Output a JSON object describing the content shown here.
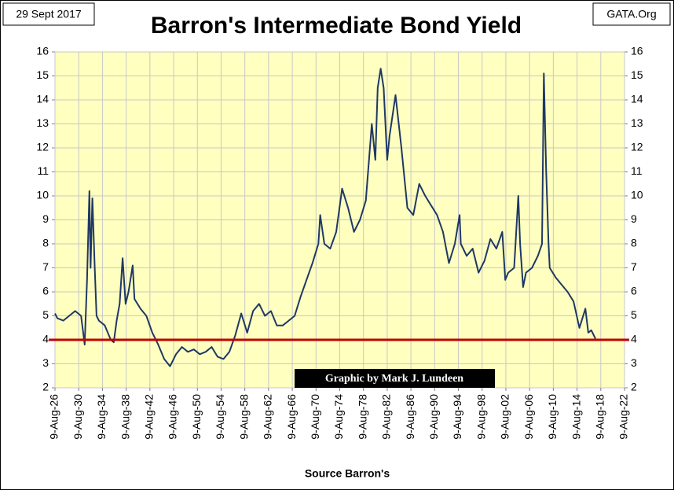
{
  "chart_data": {
    "type": "line",
    "title": "Barron's Intermediate Bond Yield",
    "date_note": "29 Sept 2017",
    "source_note": "GATA.Org",
    "credit": "Graphic by Mark J. Lundeen",
    "xlabel": "Source Barron's",
    "x": [
      1926.6,
      1927,
      1928,
      1929,
      1930,
      1931,
      1931.6,
      1932,
      1932.4,
      1932.6,
      1932.9,
      1933.3,
      1933.6,
      1934,
      1935,
      1936,
      1936.5,
      1937,
      1937.5,
      1938,
      1938.5,
      1939,
      1939.7,
      1940,
      1941,
      1942,
      1943,
      1944,
      1945,
      1946,
      1947,
      1948,
      1949,
      1950,
      1951,
      1952,
      1953,
      1954,
      1955,
      1956,
      1957,
      1958,
      1959,
      1960,
      1961,
      1962,
      1963,
      1964,
      1965,
      1966,
      1967,
      1968,
      1969,
      1970,
      1971,
      1971.3,
      1972,
      1973,
      1974,
      1975,
      1976,
      1977,
      1978,
      1979,
      1980,
      1980.6,
      1981,
      1981.5,
      1982,
      1982.6,
      1983,
      1984,
      1985,
      1986,
      1987,
      1988,
      1989,
      1990,
      1991,
      1992,
      1993,
      1994,
      1994.8,
      1995,
      1996,
      1997,
      1998,
      1999,
      2000,
      2001,
      2002,
      2002.5,
      2003,
      2004,
      2004.7,
      2005,
      2005.5,
      2006,
      2007,
      2008,
      2008.7,
      2009,
      2009.4,
      2009.8,
      2010,
      2011,
      2012,
      2013,
      2014,
      2015,
      2016,
      2016.5,
      2017,
      2017.7
    ],
    "series": [
      {
        "name": "Barron's Intermediate Bond Yield",
        "color": "#1f3864",
        "values": [
          5.1,
          4.9,
          4.8,
          5.0,
          5.2,
          5.0,
          3.8,
          6.5,
          10.2,
          7.0,
          9.9,
          7.0,
          5.0,
          4.8,
          4.6,
          4.0,
          3.9,
          4.8,
          5.5,
          7.4,
          5.5,
          6.0,
          7.1,
          5.7,
          5.3,
          5.0,
          4.3,
          3.8,
          3.2,
          2.9,
          3.4,
          3.7,
          3.5,
          3.6,
          3.4,
          3.5,
          3.7,
          3.3,
          3.2,
          3.5,
          4.2,
          5.1,
          4.3,
          5.2,
          5.5,
          5.0,
          5.2,
          4.6,
          4.6,
          4.8,
          5.0,
          5.8,
          6.5,
          7.2,
          8.0,
          9.2,
          8.0,
          7.8,
          8.5,
          10.3,
          9.5,
          8.5,
          9.0,
          9.8,
          13.0,
          11.5,
          14.5,
          15.3,
          14.5,
          11.5,
          12.5,
          14.2,
          12.0,
          9.5,
          9.2,
          10.5,
          10.0,
          9.6,
          9.2,
          8.5,
          7.2,
          8.0,
          9.2,
          8.0,
          7.5,
          7.8,
          6.8,
          7.3,
          8.2,
          7.8,
          8.5,
          6.5,
          6.8,
          7.0,
          10.0,
          8.0,
          6.2,
          6.8,
          7.0,
          7.5,
          8.0,
          15.1,
          11.0,
          8.0,
          7.0,
          6.6,
          6.3,
          6.0,
          5.6,
          4.5,
          5.3,
          4.3,
          4.4,
          4.05
        ]
      }
    ],
    "reference_line": {
      "value": 4,
      "color": "#c00000"
    },
    "xlim": [
      1926.6,
      2022.6
    ],
    "xticks": [
      {
        "value": 1926.6,
        "label": "9-Aug-26"
      },
      {
        "value": 1930.6,
        "label": "9-Aug-30"
      },
      {
        "value": 1934.6,
        "label": "9-Aug-34"
      },
      {
        "value": 1938.6,
        "label": "9-Aug-38"
      },
      {
        "value": 1942.6,
        "label": "9-Aug-42"
      },
      {
        "value": 1946.6,
        "label": "9-Aug-46"
      },
      {
        "value": 1950.6,
        "label": "9-Aug-50"
      },
      {
        "value": 1954.6,
        "label": "9-Aug-54"
      },
      {
        "value": 1958.6,
        "label": "9-Aug-58"
      },
      {
        "value": 1962.6,
        "label": "9-Aug-62"
      },
      {
        "value": 1966.6,
        "label": "9-Aug-66"
      },
      {
        "value": 1970.6,
        "label": "9-Aug-70"
      },
      {
        "value": 1974.6,
        "label": "9-Aug-74"
      },
      {
        "value": 1978.6,
        "label": "9-Aug-78"
      },
      {
        "value": 1982.6,
        "label": "9-Aug-82"
      },
      {
        "value": 1986.6,
        "label": "9-Aug-86"
      },
      {
        "value": 1990.6,
        "label": "9-Aug-90"
      },
      {
        "value": 1994.6,
        "label": "9-Aug-94"
      },
      {
        "value": 1998.6,
        "label": "9-Aug-98"
      },
      {
        "value": 2002.6,
        "label": "9-Aug-02"
      },
      {
        "value": 2006.6,
        "label": "9-Aug-06"
      },
      {
        "value": 2010.6,
        "label": "9-Aug-10"
      },
      {
        "value": 2014.6,
        "label": "9-Aug-14"
      },
      {
        "value": 2018.6,
        "label": "9-Aug-18"
      },
      {
        "value": 2022.6,
        "label": "9-Aug-22"
      }
    ],
    "ylim": [
      2,
      16
    ],
    "yticks": [
      2,
      3,
      4,
      5,
      6,
      7,
      8,
      9,
      10,
      11,
      12,
      13,
      14,
      15,
      16
    ],
    "y2lim": [
      2,
      16
    ],
    "y2ticks": [
      2,
      3,
      4,
      5,
      6,
      7,
      8,
      9,
      10,
      11,
      12,
      13,
      14,
      15,
      16
    ],
    "grid": true,
    "background": "#ffffc0"
  }
}
